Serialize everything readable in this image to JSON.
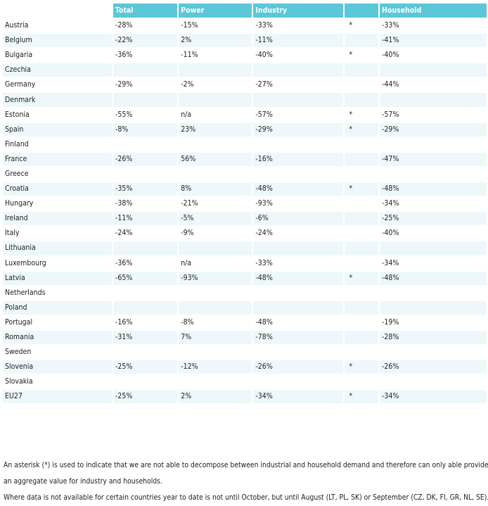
{
  "headers": [
    "",
    "Total",
    "Power",
    "Industry",
    "",
    "Household"
  ],
  "rows": [
    {
      "country": "Austria",
      "total": "-28%",
      "power": "-15%",
      "industry": "-33%",
      "asterisk": "*",
      "household": "-33%"
    },
    {
      "country": "Belgium",
      "total": "-22%",
      "power": "2%",
      "industry": "-11%",
      "asterisk": "",
      "household": "-41%"
    },
    {
      "country": "Bulgaria",
      "total": "-36%",
      "power": "-11%",
      "industry": "-40%",
      "asterisk": "*",
      "household": "-40%"
    },
    {
      "country": "Czechia",
      "total": "",
      "power": "",
      "industry": "",
      "asterisk": "",
      "household": ""
    },
    {
      "country": "Germany",
      "total": "-29%",
      "power": "-2%",
      "industry": "-27%",
      "asterisk": "",
      "household": "-44%"
    },
    {
      "country": "Denmark",
      "total": "",
      "power": "",
      "industry": "",
      "asterisk": "",
      "household": ""
    },
    {
      "country": "Estonia",
      "total": "-55%",
      "power": "n/a",
      "industry": "-57%",
      "asterisk": "*",
      "household": "-57%"
    },
    {
      "country": "Spain",
      "total": "-8%",
      "power": "23%",
      "industry": "-29%",
      "asterisk": "*",
      "household": "-29%"
    },
    {
      "country": "Finland",
      "total": "",
      "power": "",
      "industry": "",
      "asterisk": "",
      "household": ""
    },
    {
      "country": "France",
      "total": "-26%",
      "power": "56%",
      "industry": "-16%",
      "asterisk": "",
      "household": "-47%"
    },
    {
      "country": "Greece",
      "total": "",
      "power": "",
      "industry": "",
      "asterisk": "",
      "household": ""
    },
    {
      "country": "Croatia",
      "total": "-35%",
      "power": "8%",
      "industry": "-48%",
      "asterisk": "*",
      "household": "-48%"
    },
    {
      "country": "Hungary",
      "total": "-38%",
      "power": "-21%",
      "industry": "-93%",
      "asterisk": "",
      "household": "-34%"
    },
    {
      "country": "Ireland",
      "total": "-11%",
      "power": "-5%",
      "industry": "-6%",
      "asterisk": "",
      "household": "-25%"
    },
    {
      "country": "Italy",
      "total": "-24%",
      "power": "-9%",
      "industry": "-24%",
      "asterisk": "",
      "household": "-40%"
    },
    {
      "country": "Lithuania",
      "total": "",
      "power": "",
      "industry": "",
      "asterisk": "",
      "household": ""
    },
    {
      "country": "Luxembourg",
      "total": "-36%",
      "power": "n/a",
      "industry": "-33%",
      "asterisk": "",
      "household": "-34%"
    },
    {
      "country": "Latvia",
      "total": "-65%",
      "power": "-93%",
      "industry": "-48%",
      "asterisk": "*",
      "household": "-48%"
    },
    {
      "country": "Netherlands",
      "total": "",
      "power": "",
      "industry": "",
      "asterisk": "",
      "household": ""
    },
    {
      "country": "Poland",
      "total": "",
      "power": "",
      "industry": "",
      "asterisk": "",
      "household": ""
    },
    {
      "country": "Portugal",
      "total": "-16%",
      "power": "-8%",
      "industry": "-48%",
      "asterisk": "",
      "household": "-19%"
    },
    {
      "country": "Romania",
      "total": "-31%",
      "power": "7%",
      "industry": "-78%",
      "asterisk": "",
      "household": "-28%"
    },
    {
      "country": "Sweden",
      "total": "",
      "power": "",
      "industry": "",
      "asterisk": "",
      "household": ""
    },
    {
      "country": "Slovenia",
      "total": "-25%",
      "power": "-12%",
      "industry": "-26%",
      "asterisk": "*",
      "household": "-26%"
    },
    {
      "country": "Slovakia",
      "total": "",
      "power": "",
      "industry": "",
      "asterisk": "",
      "household": ""
    },
    {
      "country": "EU27",
      "total": "-25%",
      "power": "2%",
      "industry": "-34%",
      "asterisk": "*",
      "household": "-34%"
    }
  ],
  "notes": {
    "line1": "An asterisk (*) is used to indicate that we are not able to decompose between industrial and household demand and therefore can only able provide",
    "line2": "an aggregate value for industry and households.",
    "line3": "Where data is not available for certain countries year to date is not until October, but until August (LT, PL, SK) or September (CZ, DK, FI, GR, NL, SE)."
  },
  "colors": {
    "header": "#5bc7d8",
    "stripe": "#eef8fb"
  }
}
